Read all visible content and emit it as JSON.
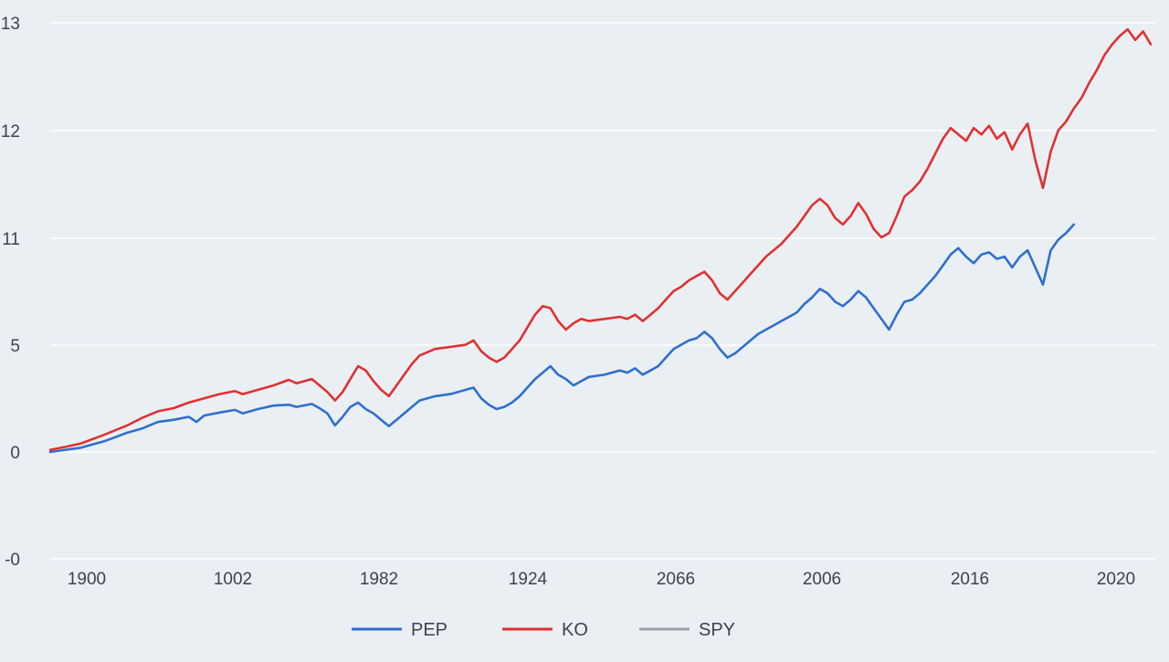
{
  "chart_data": {
    "type": "line",
    "title": "",
    "xlabel": "",
    "ylabel": "",
    "y_ticks": [
      "-0",
      "0",
      "5",
      "11",
      "12",
      "13"
    ],
    "x_ticks": [
      "1900",
      "1002",
      "1982",
      "1924",
      "2066",
      "2006",
      "2016",
      "2020"
    ],
    "legend_placement": "bottom-center",
    "grid": true,
    "series": [
      {
        "name": "PEP",
        "color": "#2f6fcf",
        "points": [
          [
            0,
            0.0
          ],
          [
            2,
            0.05
          ],
          [
            4,
            0.1
          ],
          [
            7,
            0.25
          ],
          [
            10,
            0.45
          ],
          [
            12,
            0.55
          ],
          [
            14,
            0.7
          ],
          [
            16,
            0.75
          ],
          [
            18,
            0.82
          ],
          [
            19,
            0.7
          ],
          [
            20,
            0.85
          ],
          [
            22,
            0.92
          ],
          [
            24,
            0.98
          ],
          [
            25,
            0.9
          ],
          [
            27,
            1.0
          ],
          [
            29,
            1.08
          ],
          [
            31,
            1.1
          ],
          [
            32,
            1.05
          ],
          [
            34,
            1.12
          ],
          [
            35,
            1.02
          ],
          [
            36,
            0.9
          ],
          [
            37,
            0.62
          ],
          [
            38,
            0.82
          ],
          [
            39,
            1.05
          ],
          [
            40,
            1.15
          ],
          [
            41,
            1.0
          ],
          [
            42,
            0.9
          ],
          [
            43,
            0.75
          ],
          [
            44,
            0.6
          ],
          [
            45,
            0.75
          ],
          [
            46,
            0.9
          ],
          [
            47,
            1.05
          ],
          [
            48,
            1.2
          ],
          [
            50,
            1.3
          ],
          [
            52,
            1.35
          ],
          [
            54,
            1.45
          ],
          [
            55,
            1.5
          ],
          [
            56,
            1.25
          ],
          [
            57,
            1.1
          ],
          [
            58,
            1.0
          ],
          [
            59,
            1.05
          ],
          [
            60,
            1.15
          ],
          [
            61,
            1.3
          ],
          [
            62,
            1.5
          ],
          [
            63,
            1.7
          ],
          [
            64,
            1.85
          ],
          [
            65,
            2.0
          ],
          [
            66,
            1.8
          ],
          [
            67,
            1.7
          ],
          [
            68,
            1.55
          ],
          [
            69,
            1.65
          ],
          [
            70,
            1.75
          ],
          [
            72,
            1.8
          ],
          [
            74,
            1.9
          ],
          [
            75,
            1.85
          ],
          [
            76,
            1.95
          ],
          [
            77,
            1.8
          ],
          [
            78,
            1.9
          ],
          [
            79,
            2.0
          ],
          [
            80,
            2.2
          ],
          [
            81,
            2.4
          ],
          [
            82,
            2.5
          ],
          [
            83,
            2.6
          ],
          [
            84,
            2.65
          ],
          [
            85,
            2.8
          ],
          [
            86,
            2.65
          ],
          [
            87,
            2.4
          ],
          [
            88,
            2.2
          ],
          [
            89,
            2.3
          ],
          [
            90,
            2.45
          ],
          [
            91,
            2.6
          ],
          [
            92,
            2.75
          ],
          [
            93,
            2.85
          ],
          [
            94,
            2.95
          ],
          [
            95,
            3.05
          ],
          [
            96,
            3.15
          ],
          [
            97,
            3.25
          ],
          [
            98,
            3.45
          ],
          [
            99,
            3.6
          ],
          [
            100,
            3.8
          ],
          [
            101,
            3.7
          ],
          [
            102,
            3.5
          ],
          [
            103,
            3.4
          ],
          [
            104,
            3.55
          ],
          [
            105,
            3.75
          ],
          [
            106,
            3.6
          ],
          [
            107,
            3.35
          ],
          [
            108,
            3.1
          ],
          [
            109,
            2.85
          ],
          [
            110,
            3.2
          ],
          [
            111,
            3.5
          ],
          [
            112,
            3.55
          ],
          [
            113,
            3.7
          ],
          [
            114,
            3.9
          ],
          [
            115,
            4.1
          ],
          [
            116,
            4.35
          ],
          [
            117,
            4.6
          ],
          [
            118,
            4.75
          ],
          [
            119,
            4.55
          ],
          [
            120,
            4.4
          ],
          [
            121,
            4.6
          ],
          [
            122,
            4.65
          ],
          [
            123,
            4.5
          ],
          [
            124,
            4.55
          ],
          [
            125,
            4.3
          ],
          [
            126,
            4.55
          ],
          [
            127,
            4.7
          ],
          [
            128,
            4.3
          ],
          [
            129,
            3.9
          ],
          [
            130,
            4.7
          ],
          [
            131,
            4.95
          ],
          [
            132,
            5.1
          ],
          [
            133,
            5.3
          ]
        ]
      },
      {
        "name": "KO",
        "color": "#e03131",
        "points": [
          [
            0,
            0.05
          ],
          [
            2,
            0.12
          ],
          [
            4,
            0.2
          ],
          [
            7,
            0.4
          ],
          [
            10,
            0.62
          ],
          [
            12,
            0.8
          ],
          [
            14,
            0.95
          ],
          [
            16,
            1.02
          ],
          [
            18,
            1.15
          ],
          [
            20,
            1.25
          ],
          [
            22,
            1.35
          ],
          [
            24,
            1.42
          ],
          [
            25,
            1.35
          ],
          [
            27,
            1.45
          ],
          [
            29,
            1.55
          ],
          [
            31,
            1.68
          ],
          [
            32,
            1.6
          ],
          [
            34,
            1.7
          ],
          [
            35,
            1.55
          ],
          [
            36,
            1.4
          ],
          [
            37,
            1.2
          ],
          [
            38,
            1.4
          ],
          [
            39,
            1.7
          ],
          [
            40,
            2.0
          ],
          [
            41,
            1.9
          ],
          [
            42,
            1.65
          ],
          [
            43,
            1.45
          ],
          [
            44,
            1.3
          ],
          [
            45,
            1.55
          ],
          [
            46,
            1.8
          ],
          [
            47,
            2.05
          ],
          [
            48,
            2.25
          ],
          [
            50,
            2.4
          ],
          [
            52,
            2.45
          ],
          [
            54,
            2.5
          ],
          [
            55,
            2.6
          ],
          [
            56,
            2.35
          ],
          [
            57,
            2.2
          ],
          [
            58,
            2.1
          ],
          [
            59,
            2.2
          ],
          [
            60,
            2.4
          ],
          [
            61,
            2.6
          ],
          [
            62,
            2.9
          ],
          [
            63,
            3.2
          ],
          [
            64,
            3.4
          ],
          [
            65,
            3.35
          ],
          [
            66,
            3.05
          ],
          [
            67,
            2.85
          ],
          [
            68,
            3.0
          ],
          [
            69,
            3.1
          ],
          [
            70,
            3.05
          ],
          [
            72,
            3.1
          ],
          [
            74,
            3.15
          ],
          [
            75,
            3.1
          ],
          [
            76,
            3.2
          ],
          [
            77,
            3.05
          ],
          [
            78,
            3.2
          ],
          [
            79,
            3.35
          ],
          [
            80,
            3.55
          ],
          [
            81,
            3.75
          ],
          [
            82,
            3.85
          ],
          [
            83,
            4.0
          ],
          [
            84,
            4.1
          ],
          [
            85,
            4.2
          ],
          [
            86,
            4.0
          ],
          [
            87,
            3.7
          ],
          [
            88,
            3.55
          ],
          [
            89,
            3.75
          ],
          [
            90,
            3.95
          ],
          [
            91,
            4.15
          ],
          [
            92,
            4.35
          ],
          [
            93,
            4.55
          ],
          [
            94,
            4.7
          ],
          [
            95,
            4.85
          ],
          [
            96,
            5.05
          ],
          [
            97,
            5.25
          ],
          [
            98,
            5.5
          ],
          [
            99,
            5.75
          ],
          [
            100,
            5.9
          ],
          [
            101,
            5.75
          ],
          [
            102,
            5.45
          ],
          [
            103,
            5.3
          ],
          [
            104,
            5.5
          ],
          [
            105,
            5.8
          ],
          [
            106,
            5.55
          ],
          [
            107,
            5.2
          ],
          [
            108,
            5.0
          ],
          [
            109,
            5.1
          ],
          [
            110,
            5.5
          ],
          [
            111,
            5.95
          ],
          [
            112,
            6.1
          ],
          [
            113,
            6.3
          ],
          [
            114,
            6.6
          ],
          [
            115,
            6.95
          ],
          [
            116,
            7.3
          ],
          [
            117,
            7.55
          ],
          [
            118,
            7.4
          ],
          [
            119,
            7.25
          ],
          [
            120,
            7.55
          ],
          [
            121,
            7.4
          ],
          [
            122,
            7.6
          ],
          [
            123,
            7.3
          ],
          [
            124,
            7.45
          ],
          [
            125,
            7.05
          ],
          [
            126,
            7.4
          ],
          [
            127,
            7.65
          ],
          [
            128,
            6.8
          ],
          [
            129,
            6.15
          ],
          [
            130,
            7.0
          ],
          [
            131,
            7.5
          ],
          [
            132,
            7.7
          ],
          [
            133,
            8.0
          ],
          [
            134,
            8.25
          ],
          [
            135,
            8.6
          ],
          [
            136,
            8.9
          ],
          [
            137,
            9.25
          ],
          [
            138,
            9.5
          ],
          [
            139,
            9.7
          ],
          [
            140,
            9.85
          ],
          [
            141,
            9.6
          ],
          [
            142,
            9.8
          ],
          [
            143,
            9.5
          ]
        ]
      },
      {
        "name": "SPY",
        "color": "#9aa0a6",
        "points": []
      }
    ]
  }
}
